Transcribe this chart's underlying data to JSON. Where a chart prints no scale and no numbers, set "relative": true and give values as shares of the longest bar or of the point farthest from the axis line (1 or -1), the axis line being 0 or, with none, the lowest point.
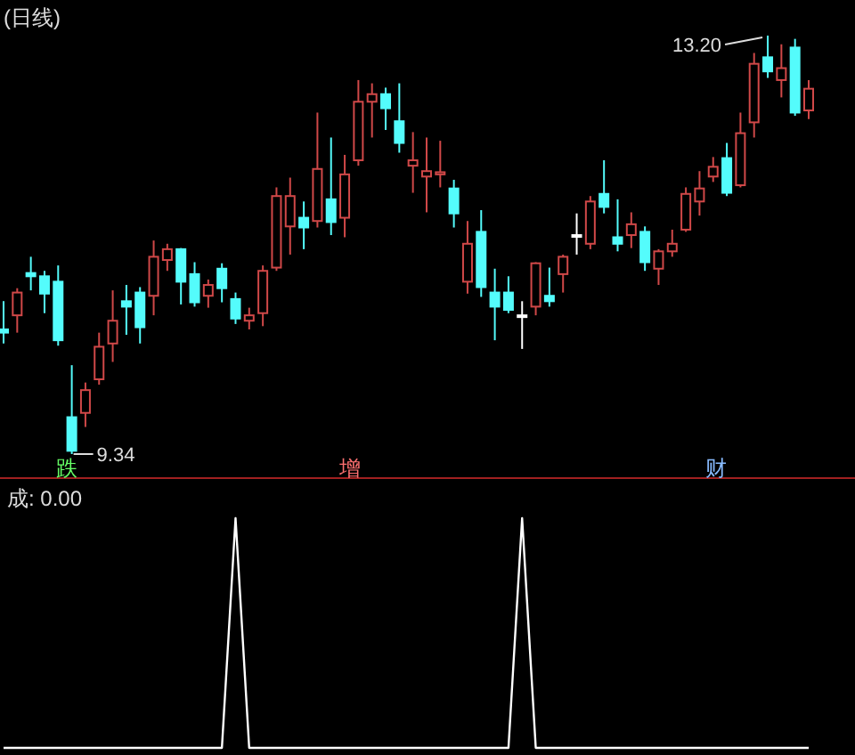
{
  "chart_data": [
    {
      "type": "candlestick",
      "title": "(日线)",
      "categories": [
        null,
        null,
        null,
        null,
        null,
        null,
        null,
        null,
        null,
        null,
        null,
        null,
        null,
        null,
        null,
        null,
        null,
        null,
        null,
        null,
        null,
        null,
        null,
        null,
        null,
        null,
        null,
        null,
        null,
        null,
        null,
        null,
        null,
        null,
        null,
        null,
        null,
        null,
        null,
        null,
        null,
        null,
        null,
        null,
        null,
        null,
        null,
        null,
        null,
        null,
        null,
        null,
        null,
        null,
        null,
        null,
        null,
        null,
        null,
        null
      ],
      "ohlc": [
        [
          10.49,
          10.75,
          10.36,
          10.46
        ],
        [
          10.62,
          10.87,
          10.46,
          10.83
        ],
        [
          11.01,
          11.16,
          10.85,
          10.98
        ],
        [
          10.98,
          11.03,
          10.64,
          10.82
        ],
        [
          10.93,
          11.08,
          10.34,
          10.39
        ],
        [
          9.68,
          10.16,
          9.34,
          9.37
        ],
        [
          9.72,
          10.0,
          9.59,
          9.93
        ],
        [
          10.03,
          10.46,
          9.98,
          10.33
        ],
        [
          10.36,
          10.85,
          10.19,
          10.57
        ],
        [
          10.75,
          10.9,
          10.44,
          10.7
        ],
        [
          10.83,
          10.88,
          10.36,
          10.51
        ],
        [
          10.8,
          11.31,
          10.62,
          11.16
        ],
        [
          11.13,
          11.28,
          11.03,
          11.23
        ],
        [
          11.23,
          11.24,
          10.72,
          10.93
        ],
        [
          11.0,
          11.11,
          10.7,
          10.74
        ],
        [
          10.8,
          10.95,
          10.69,
          10.9
        ],
        [
          11.05,
          11.1,
          10.74,
          10.87
        ],
        [
          10.77,
          10.83,
          10.54,
          10.59
        ],
        [
          10.57,
          10.69,
          10.49,
          10.62
        ],
        [
          10.64,
          11.08,
          10.52,
          11.03
        ],
        [
          11.06,
          11.8,
          11.03,
          11.72
        ],
        [
          11.44,
          11.89,
          11.18,
          11.72
        ],
        [
          11.52,
          11.67,
          11.23,
          11.43
        ],
        [
          11.49,
          12.49,
          11.43,
          11.97
        ],
        [
          11.69,
          12.26,
          11.36,
          11.48
        ],
        [
          11.52,
          12.1,
          11.34,
          11.92
        ],
        [
          12.05,
          12.79,
          12.0,
          12.59
        ],
        [
          12.59,
          12.76,
          12.26,
          12.66
        ],
        [
          12.66,
          12.72,
          12.33,
          12.53
        ],
        [
          12.41,
          12.76,
          12.12,
          12.21
        ],
        [
          12.0,
          12.31,
          11.75,
          12.05
        ],
        [
          11.9,
          12.26,
          11.57,
          11.95
        ],
        [
          11.92,
          12.23,
          11.8,
          11.94
        ],
        [
          11.79,
          11.87,
          11.43,
          11.56
        ],
        [
          10.93,
          11.49,
          10.82,
          11.28
        ],
        [
          11.39,
          11.59,
          10.79,
          10.88
        ],
        [
          10.83,
          11.05,
          10.39,
          10.7
        ],
        [
          10.83,
          10.98,
          10.64,
          10.67
        ],
        [
          10.62,
          10.75,
          10.31,
          10.62
        ],
        [
          10.7,
          11.11,
          10.62,
          11.1
        ],
        [
          10.8,
          11.06,
          10.7,
          10.75
        ],
        [
          11.0,
          11.18,
          10.83,
          11.16
        ],
        [
          11.36,
          11.56,
          11.18,
          11.36
        ],
        [
          11.28,
          11.72,
          11.23,
          11.67
        ],
        [
          11.74,
          12.05,
          11.56,
          11.62
        ],
        [
          11.34,
          11.69,
          11.21,
          11.28
        ],
        [
          11.36,
          11.57,
          11.24,
          11.46
        ],
        [
          11.39,
          11.44,
          11.03,
          11.11
        ],
        [
          11.05,
          11.23,
          10.9,
          11.21
        ],
        [
          11.21,
          11.41,
          11.16,
          11.28
        ],
        [
          11.41,
          11.8,
          11.39,
          11.74
        ],
        [
          11.67,
          11.95,
          11.54,
          11.79
        ],
        [
          11.9,
          12.08,
          11.85,
          11.99
        ],
        [
          12.07,
          12.21,
          11.72,
          11.75
        ],
        [
          11.82,
          12.49,
          11.8,
          12.3
        ],
        [
          12.4,
          13.04,
          12.26,
          12.94
        ],
        [
          13.0,
          13.2,
          12.81,
          12.87
        ],
        [
          12.79,
          13.12,
          12.63,
          12.9
        ],
        [
          13.09,
          13.17,
          12.46,
          12.49
        ],
        [
          12.51,
          12.79,
          12.43,
          12.71
        ]
      ],
      "colors": [
        "#54fcfc",
        "#d04848",
        "#54fcfc",
        "#54fcfc",
        "#54fcfc",
        "#54fcfc",
        "#d04848",
        "#d04848",
        "#d04848",
        "#54fcfc",
        "#54fcfc",
        "#d04848",
        "#d04848",
        "#54fcfc",
        "#54fcfc",
        "#d04848",
        "#54fcfc",
        "#54fcfc",
        "#d04848",
        "#d04848",
        "#d04848",
        "#d04848",
        "#54fcfc",
        "#d04848",
        "#54fcfc",
        "#d04848",
        "#d04848",
        "#d04848",
        "#54fcfc",
        "#54fcfc",
        "#d04848",
        "#d04848",
        "#d04848",
        "#54fcfc",
        "#d04848",
        "#54fcfc",
        "#54fcfc",
        "#54fcfc",
        "#ffffff",
        "#d04848",
        "#54fcfc",
        "#d04848",
        "#ffffff",
        "#d04848",
        "#54fcfc",
        "#54fcfc",
        "#d04848",
        "#54fcfc",
        "#d04848",
        "#d04848",
        "#d04848",
        "#d04848",
        "#d04848",
        "#54fcfc",
        "#d04848",
        "#d04848",
        "#54fcfc",
        "#d04848",
        "#54fcfc",
        "#d04848"
      ],
      "annotations": [
        "9.34",
        "13.20",
        "跌",
        "增",
        "财"
      ]
    },
    {
      "type": "line",
      "title": "成: 0.00",
      "relative": true,
      "categories": [
        null,
        null,
        null,
        null,
        null,
        null,
        null,
        null,
        null,
        null,
        null,
        null,
        null,
        null,
        null,
        null,
        null,
        null,
        null,
        null,
        null,
        null,
        null,
        null,
        null,
        null,
        null,
        null,
        null,
        null,
        null,
        null,
        null,
        null,
        null,
        null,
        null,
        null,
        null,
        null,
        null,
        null,
        null,
        null,
        null,
        null,
        null,
        null,
        null,
        null,
        null,
        null,
        null,
        null,
        null,
        null,
        null,
        null,
        null,
        null
      ],
      "series": [
        {
          "color": "#ffffff",
          "values": [
            0,
            0,
            0,
            0,
            0,
            0,
            0,
            0,
            0,
            0,
            0,
            0,
            0,
            0,
            0,
            0,
            0,
            1,
            0,
            0,
            0,
            0,
            0,
            0,
            0,
            0,
            0,
            0,
            0,
            0,
            0,
            0,
            0,
            0,
            0,
            0,
            0,
            0,
            1,
            0,
            0,
            0,
            0,
            0,
            0,
            0,
            0,
            0,
            0,
            0,
            0,
            0,
            0,
            0,
            0,
            0,
            0,
            0,
            0,
            0
          ]
        }
      ]
    }
  ]
}
